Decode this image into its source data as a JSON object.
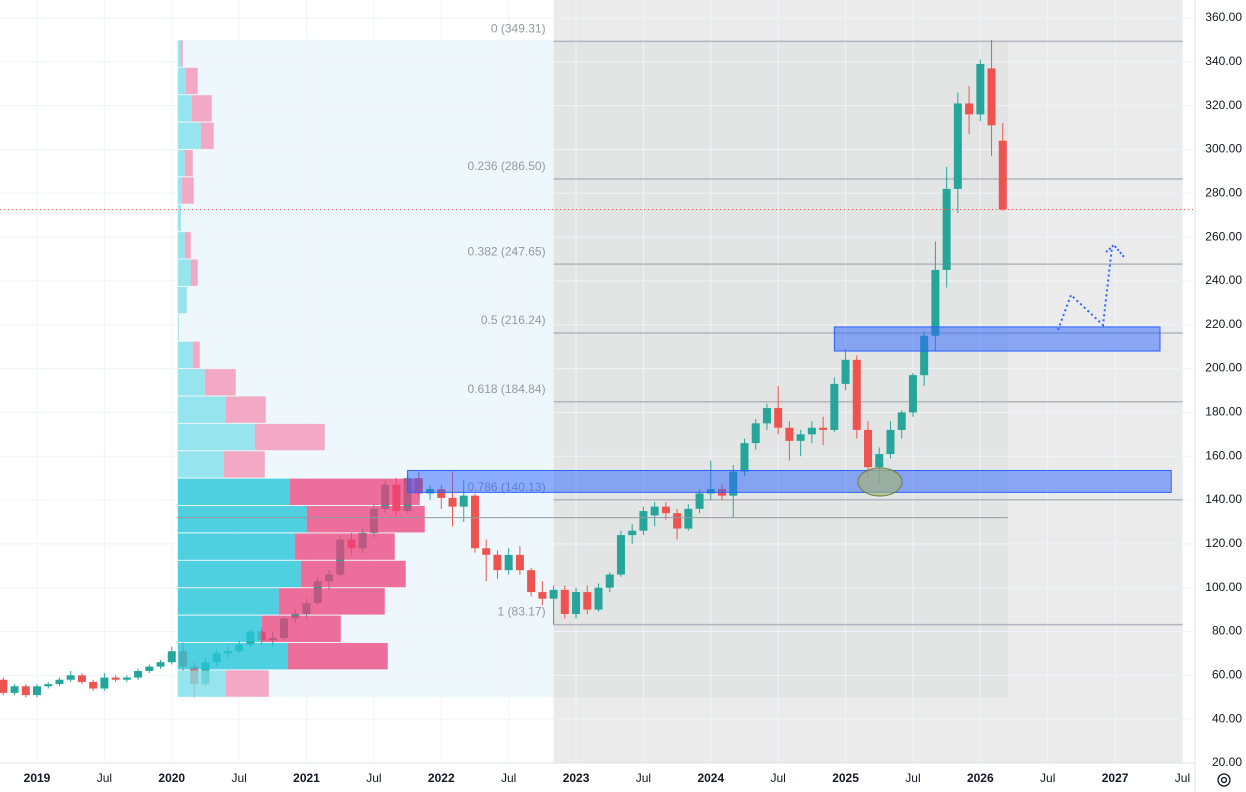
{
  "chart_data": {
    "type": "candlestick",
    "x": [
      "2018-10",
      "2018-11",
      "2018-12",
      "2019-01",
      "2019-02",
      "2019-03",
      "2019-04",
      "2019-05",
      "2019-06",
      "2019-07",
      "2019-08",
      "2019-09",
      "2019-10",
      "2019-11",
      "2019-12",
      "2020-01",
      "2020-02",
      "2020-03",
      "2020-04",
      "2020-05",
      "2020-06",
      "2020-07",
      "2020-08",
      "2020-09",
      "2020-10",
      "2020-11",
      "2020-12",
      "2021-01",
      "2021-02",
      "2021-03",
      "2021-04",
      "2021-05",
      "2021-06",
      "2021-07",
      "2021-08",
      "2021-09",
      "2021-10",
      "2021-11",
      "2021-12",
      "2022-01",
      "2022-02",
      "2022-03",
      "2022-04",
      "2022-05",
      "2022-06",
      "2022-07",
      "2022-08",
      "2022-09",
      "2022-10",
      "2022-11",
      "2022-12",
      "2023-01",
      "2023-02",
      "2023-03",
      "2023-04",
      "2023-05",
      "2023-06",
      "2023-07",
      "2023-08",
      "2023-09",
      "2023-10",
      "2023-11",
      "2023-12",
      "2024-01",
      "2024-02",
      "2024-03",
      "2024-04",
      "2024-05",
      "2024-06",
      "2024-07",
      "2024-08",
      "2024-09",
      "2024-10",
      "2024-11",
      "2024-12",
      "2025-01",
      "2025-02",
      "2025-03",
      "2025-04",
      "2025-05",
      "2025-06",
      "2025-07",
      "2025-08",
      "2025-09",
      "2025-10",
      "2025-11",
      "2025-12",
      "2026-01",
      "2026-02",
      "2026-03"
    ],
    "open": [
      58,
      52,
      55,
      51,
      55,
      56,
      58,
      60,
      57,
      54,
      59,
      58,
      59,
      62,
      64,
      66,
      71,
      64,
      56,
      66,
      70,
      71,
      74,
      80,
      76,
      77,
      86,
      88,
      93,
      103,
      106,
      122,
      118,
      125,
      136,
      147,
      135,
      150,
      143,
      145,
      141,
      137,
      142,
      118,
      115,
      108,
      115,
      108,
      98,
      95,
      99,
      88,
      98,
      90,
      100,
      106,
      124,
      126,
      133,
      137,
      134,
      127,
      136,
      143,
      145,
      142,
      153,
      166,
      175,
      182,
      173,
      167,
      170,
      173,
      172,
      193,
      204,
      172,
      155,
      161,
      172,
      180,
      197,
      215,
      245,
      282,
      321,
      316,
      337,
      304
    ],
    "high": [
      59,
      56,
      56,
      56,
      57,
      59,
      62,
      61,
      58,
      61,
      60,
      60,
      63,
      65,
      67,
      73,
      75,
      66,
      68,
      72,
      73,
      76,
      81,
      82,
      80,
      87,
      90,
      95,
      105,
      108,
      124,
      125,
      127,
      138,
      149,
      150,
      152,
      153,
      147,
      147,
      153,
      149,
      143,
      122,
      117,
      118,
      119,
      109,
      103,
      101,
      101,
      100,
      101,
      102,
      107,
      126,
      129,
      137,
      139,
      139,
      136,
      138,
      145,
      158,
      147,
      156,
      168,
      177,
      184,
      192,
      176,
      172,
      176,
      178,
      196,
      209,
      206,
      176,
      164,
      176,
      181,
      198,
      217,
      258,
      292,
      326,
      329,
      341,
      350,
      312
    ],
    "low": [
      51,
      51,
      50,
      50,
      54,
      55,
      57,
      56,
      53,
      53,
      57,
      57,
      58,
      61,
      63,
      65,
      62,
      50,
      55,
      64,
      68,
      70,
      73,
      74,
      73,
      76,
      84,
      86,
      92,
      99,
      105,
      115,
      116,
      123,
      134,
      133,
      134,
      141,
      140,
      136,
      128,
      130,
      116,
      103,
      104,
      106,
      106,
      96,
      92,
      83.17,
      86,
      86,
      88,
      89,
      98,
      105,
      120,
      124,
      128,
      131,
      122,
      126,
      134,
      140,
      140,
      132,
      151,
      163,
      172,
      170,
      158,
      160,
      166,
      165,
      171,
      190,
      168,
      150,
      148,
      159,
      168,
      178,
      192,
      208,
      237,
      271,
      307,
      313,
      297,
      272
    ],
    "close": [
      52,
      55,
      51,
      55,
      56,
      58,
      60,
      57,
      54,
      59,
      58,
      59,
      62,
      64,
      66,
      71,
      64,
      56,
      66,
      70,
      71,
      74,
      80,
      76,
      77,
      86,
      88,
      93,
      103,
      106,
      122,
      118,
      125,
      136,
      147,
      135,
      150,
      143,
      145,
      141,
      137,
      142,
      118,
      115,
      108,
      115,
      108,
      98,
      95,
      99,
      88,
      98,
      90,
      100,
      106,
      124,
      126,
      135,
      137,
      134,
      127,
      136,
      143,
      145,
      142,
      153,
      166,
      175,
      182,
      173,
      167,
      170,
      173,
      172,
      193,
      204,
      172,
      155,
      161,
      172,
      180,
      197,
      215,
      245,
      282,
      321,
      316,
      339,
      311,
      272.6
    ],
    "up_color": "#26a69a",
    "down_color": "#ef5350",
    "ylim": [
      20,
      368.2
    ],
    "yticks": [
      {
        "value": 20,
        "label": "20.00"
      },
      {
        "value": 40,
        "label": "40.00"
      },
      {
        "value": 60,
        "label": "60.00"
      },
      {
        "value": 80,
        "label": "80.00"
      },
      {
        "value": 100,
        "label": "100.00"
      },
      {
        "value": 120,
        "label": "120.00"
      },
      {
        "value": 140,
        "label": "140.00"
      },
      {
        "value": 160,
        "label": "160.00"
      },
      {
        "value": 180,
        "label": "180.00"
      },
      {
        "value": 200,
        "label": "200.00"
      },
      {
        "value": 220,
        "label": "220.00"
      },
      {
        "value": 240,
        "label": "240.00"
      },
      {
        "value": 260,
        "label": "260.00"
      },
      {
        "value": 280,
        "label": "280.00"
      },
      {
        "value": 300,
        "label": "300.00"
      },
      {
        "value": 320,
        "label": "320.00"
      },
      {
        "value": 340,
        "label": "340.00"
      },
      {
        "value": 360,
        "label": "360.00"
      }
    ],
    "xticks": [
      {
        "value": "2019-01",
        "label": "2019"
      },
      {
        "value": "2019-07",
        "label": "Jul"
      },
      {
        "value": "2020-01",
        "label": "2020"
      },
      {
        "value": "2020-07",
        "label": "Jul"
      },
      {
        "value": "2021-01",
        "label": "2021"
      },
      {
        "value": "2021-07",
        "label": "Jul"
      },
      {
        "value": "2022-01",
        "label": "2022"
      },
      {
        "value": "2022-07",
        "label": "Jul"
      },
      {
        "value": "2023-01",
        "label": "2023"
      },
      {
        "value": "2023-07",
        "label": "Jul"
      },
      {
        "value": "2024-01",
        "label": "2024"
      },
      {
        "value": "2024-07",
        "label": "Jul"
      },
      {
        "value": "2025-01",
        "label": "2025"
      },
      {
        "value": "2025-07",
        "label": "Jul"
      },
      {
        "value": "2026-01",
        "label": "2026"
      },
      {
        "value": "2026-07",
        "label": "Jul"
      },
      {
        "value": "2027-01",
        "label": "2027"
      },
      {
        "value": "2027-07",
        "label": "Jul"
      }
    ],
    "grid": true,
    "last_price": 272.6,
    "fib_range": [
      "2022-11",
      "2027-07"
    ],
    "fib_levels": [
      {
        "value": 349.31,
        "label": "0 (349.31)"
      },
      {
        "value": 286.5,
        "label": "0.236 (286.50)"
      },
      {
        "value": 247.65,
        "label": "0.382 (247.65)"
      },
      {
        "value": 216.24,
        "label": "0.5 (216.24)"
      },
      {
        "value": 184.84,
        "label": "0.618 (184.84)"
      },
      {
        "value": 140.13,
        "label": "0.786 (140.13)"
      },
      {
        "value": 83.17,
        "label": "1 (83.17)"
      }
    ],
    "volume_profile": {
      "range": [
        "2020-01",
        "2022-11"
      ],
      "bins": [
        50,
        62.5,
        75,
        87.5,
        100,
        112.5,
        125,
        137.5,
        150,
        162.5,
        175,
        187.5,
        200,
        212.5,
        225,
        237.5,
        250,
        262.5,
        275,
        287.5,
        300,
        312.5,
        325,
        337.5,
        350
      ],
      "up": [
        48,
        110,
        84,
        101,
        123,
        117,
        129,
        112,
        46,
        77,
        48,
        27,
        15,
        1,
        9,
        13,
        7,
        3,
        4,
        7,
        23,
        14,
        8,
        3
      ],
      "down": [
        43,
        100,
        79,
        106,
        105,
        100,
        118,
        130,
        41,
        70,
        40,
        31,
        7,
        0,
        0,
        7,
        6,
        0,
        12,
        8,
        13,
        20,
        12,
        2
      ],
      "value_area": [
        62.5,
        150
      ]
    },
    "poc": 132,
    "zones": [
      {
        "range": [
          "2024-12",
          "2027-05"
        ],
        "price": [
          208,
          219
        ]
      },
      {
        "range": [
          "2021-10",
          "2027-06"
        ],
        "price": [
          143.5,
          153.5
        ]
      }
    ]
  }
}
